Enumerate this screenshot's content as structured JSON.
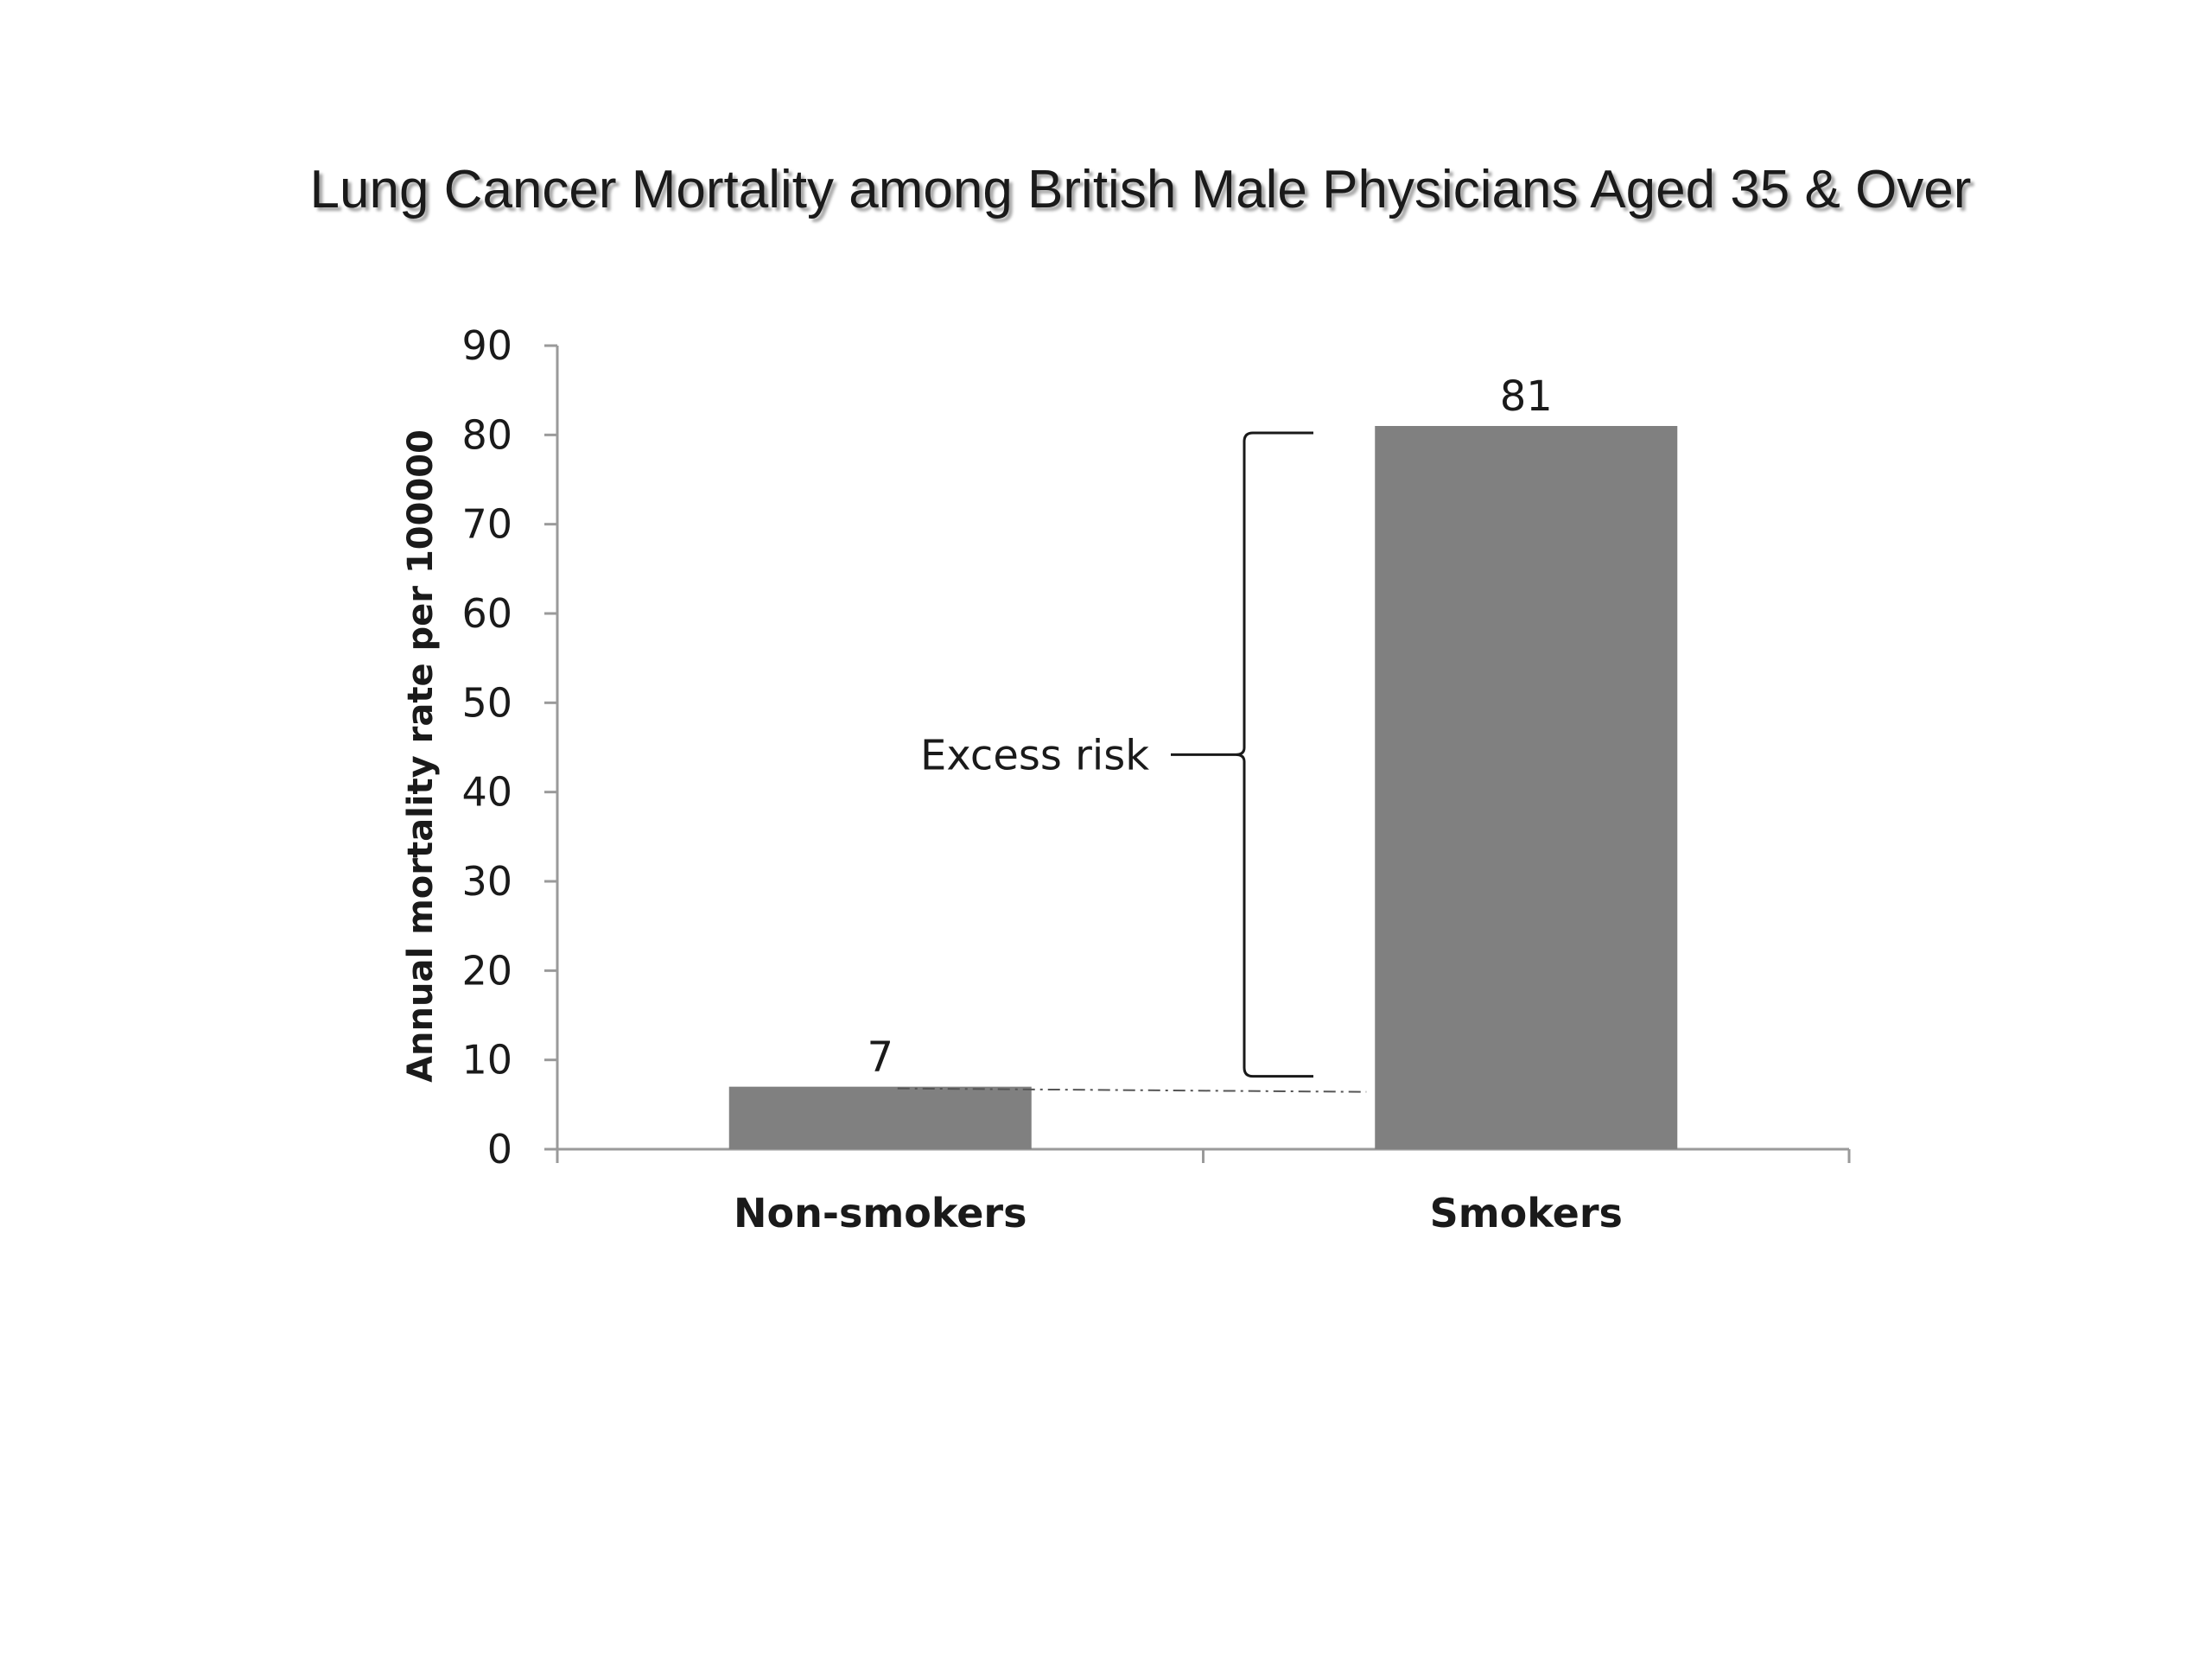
{
  "chart_data": {
    "type": "bar",
    "title": "Lung Cancer Mortality among British Male Physicians Aged 35 & Over",
    "ylabel": "Annual mortality rate per 100000",
    "xlabel": "",
    "categories": [
      "Non-smokers",
      "Smokers"
    ],
    "values": [
      7,
      81
    ],
    "data_labels": [
      "7",
      "81"
    ],
    "ylim": [
      0,
      90
    ],
    "yticks": [
      0,
      10,
      20,
      30,
      40,
      50,
      60,
      70,
      80,
      90
    ],
    "ytick_labels": [
      "0",
      "10",
      "20",
      "30",
      "40",
      "50",
      "60",
      "70",
      "80",
      "90"
    ],
    "grid": false,
    "legend": "none",
    "bar_color": "#808080",
    "annotations": [
      {
        "text": "Excess risk",
        "from_value": 7,
        "to_value": 81,
        "kind": "brace"
      }
    ]
  }
}
